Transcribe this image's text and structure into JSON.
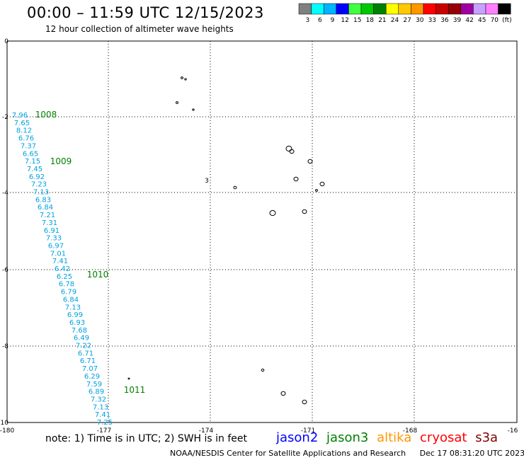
{
  "header": {
    "title": "00:00 – 11:59 UTC 12/15/2023",
    "subtitle": "12 hour collection of altimeter wave heights"
  },
  "legend": {
    "ticks": [
      "3",
      "6",
      "9",
      "12",
      "15",
      "18",
      "21",
      "24",
      "27",
      "30",
      "33",
      "36",
      "39",
      "42",
      "45",
      "70",
      "(ft)"
    ],
    "colors": [
      "#808080",
      "#00ffff",
      "#00b4ff",
      "#0000ff",
      "#40ff40",
      "#00c800",
      "#008000",
      "#ffff00",
      "#ffc800",
      "#ff9600",
      "#ff0000",
      "#c80000",
      "#960000",
      "#a000a0",
      "#c8a0ff",
      "#ff80ff",
      "#000000"
    ]
  },
  "map": {
    "x_ticks": [
      "-180",
      "-177",
      "-174",
      "-171",
      "-168",
      "-16"
    ],
    "y_ticks": [
      "0",
      "-2",
      "-4",
      "-6",
      "-8",
      "-10"
    ],
    "swh_color": "#00a0e0",
    "contour_color": "#008000",
    "swh_values": [
      "7.96",
      "7.65",
      "8.12",
      "6.76",
      "7.37",
      "6.65",
      "7.15",
      "7.45",
      "6.92",
      "7.23",
      "7.13",
      "6.83",
      "6.84",
      "7.21",
      "7.31",
      "6.91",
      "7.33",
      "6.97",
      "7.01",
      "7.41",
      "6.42",
      "6.25",
      "6.78",
      "6.79",
      "6.84",
      "7.13",
      "6.99",
      "6.93",
      "7.68",
      "6.49",
      "7.22",
      "6.71",
      "6.71",
      "7.07",
      "6.29",
      "7.59",
      "6.89",
      "7.32",
      "7.13",
      "7.41",
      "7.25"
    ],
    "pressure_labels": [
      "1008",
      "1009",
      "1010",
      "1011"
    ],
    "island_label": "3"
  },
  "footer": {
    "note": "note:  1) Time is in UTC; 2) SWH is in feet",
    "satellites": [
      {
        "name": "jason2",
        "color": "#0000ff"
      },
      {
        "name": "jason3",
        "color": "#008000"
      },
      {
        "name": "altika",
        "color": "#ff9600"
      },
      {
        "name": "cryosat",
        "color": "#ff0000"
      },
      {
        "name": "s3a",
        "color": "#800000"
      }
    ],
    "credit": "NOAA/NESDIS Center for Satellite Applications and Research",
    "timestamp": "Dec 17 08:31:20 UTC 2023"
  }
}
